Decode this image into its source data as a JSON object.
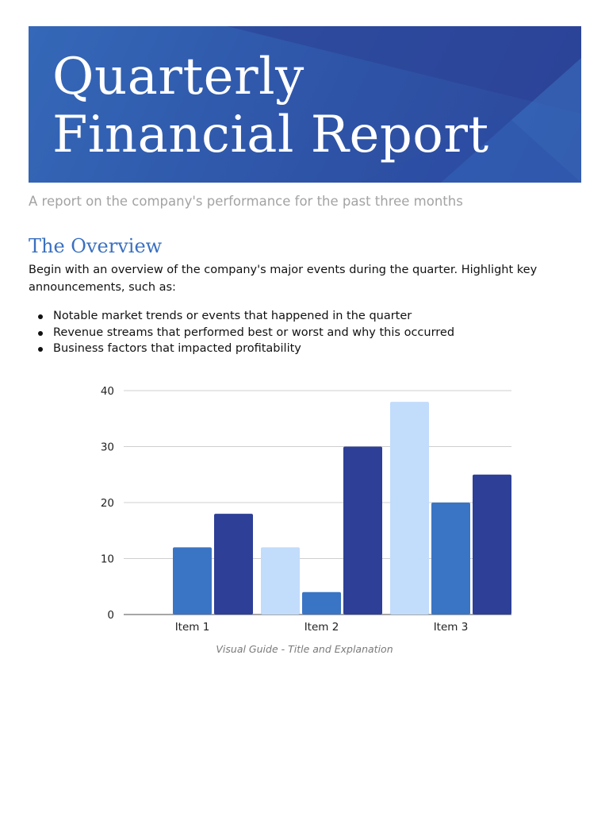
{
  "header": {
    "title_line1": "Quarterly",
    "title_line2": "Financial Report",
    "colors": {
      "dark": "#2c479b",
      "mid": "#3568b8"
    }
  },
  "subtitle": "A report on the company's performance for the past three months",
  "overview": {
    "heading": "The Overview",
    "intro": "Begin with an overview of the company's major events during the quarter. Highlight key announcements, such as:",
    "bullets": [
      "Notable market trends or events that happened in the quarter",
      "Revenue streams that performed best or worst and why this occurred",
      "Business factors that impacted profitability"
    ]
  },
  "chart_data": {
    "type": "bar",
    "categories": [
      "Item 1",
      "Item 2",
      "Item 3"
    ],
    "series": [
      {
        "values": [
          0,
          12,
          38
        ],
        "color": "#c2dcfb"
      },
      {
        "values": [
          12,
          4,
          20
        ],
        "color": "#3a74c4"
      },
      {
        "values": [
          18,
          30,
          25
        ],
        "color": "#2d3f96"
      }
    ],
    "ylim": [
      0,
      40
    ],
    "yticks": [
      0,
      10,
      20,
      30,
      40
    ],
    "grid": true,
    "legend": "none"
  },
  "caption": "Visual Guide - Title and Explanation"
}
